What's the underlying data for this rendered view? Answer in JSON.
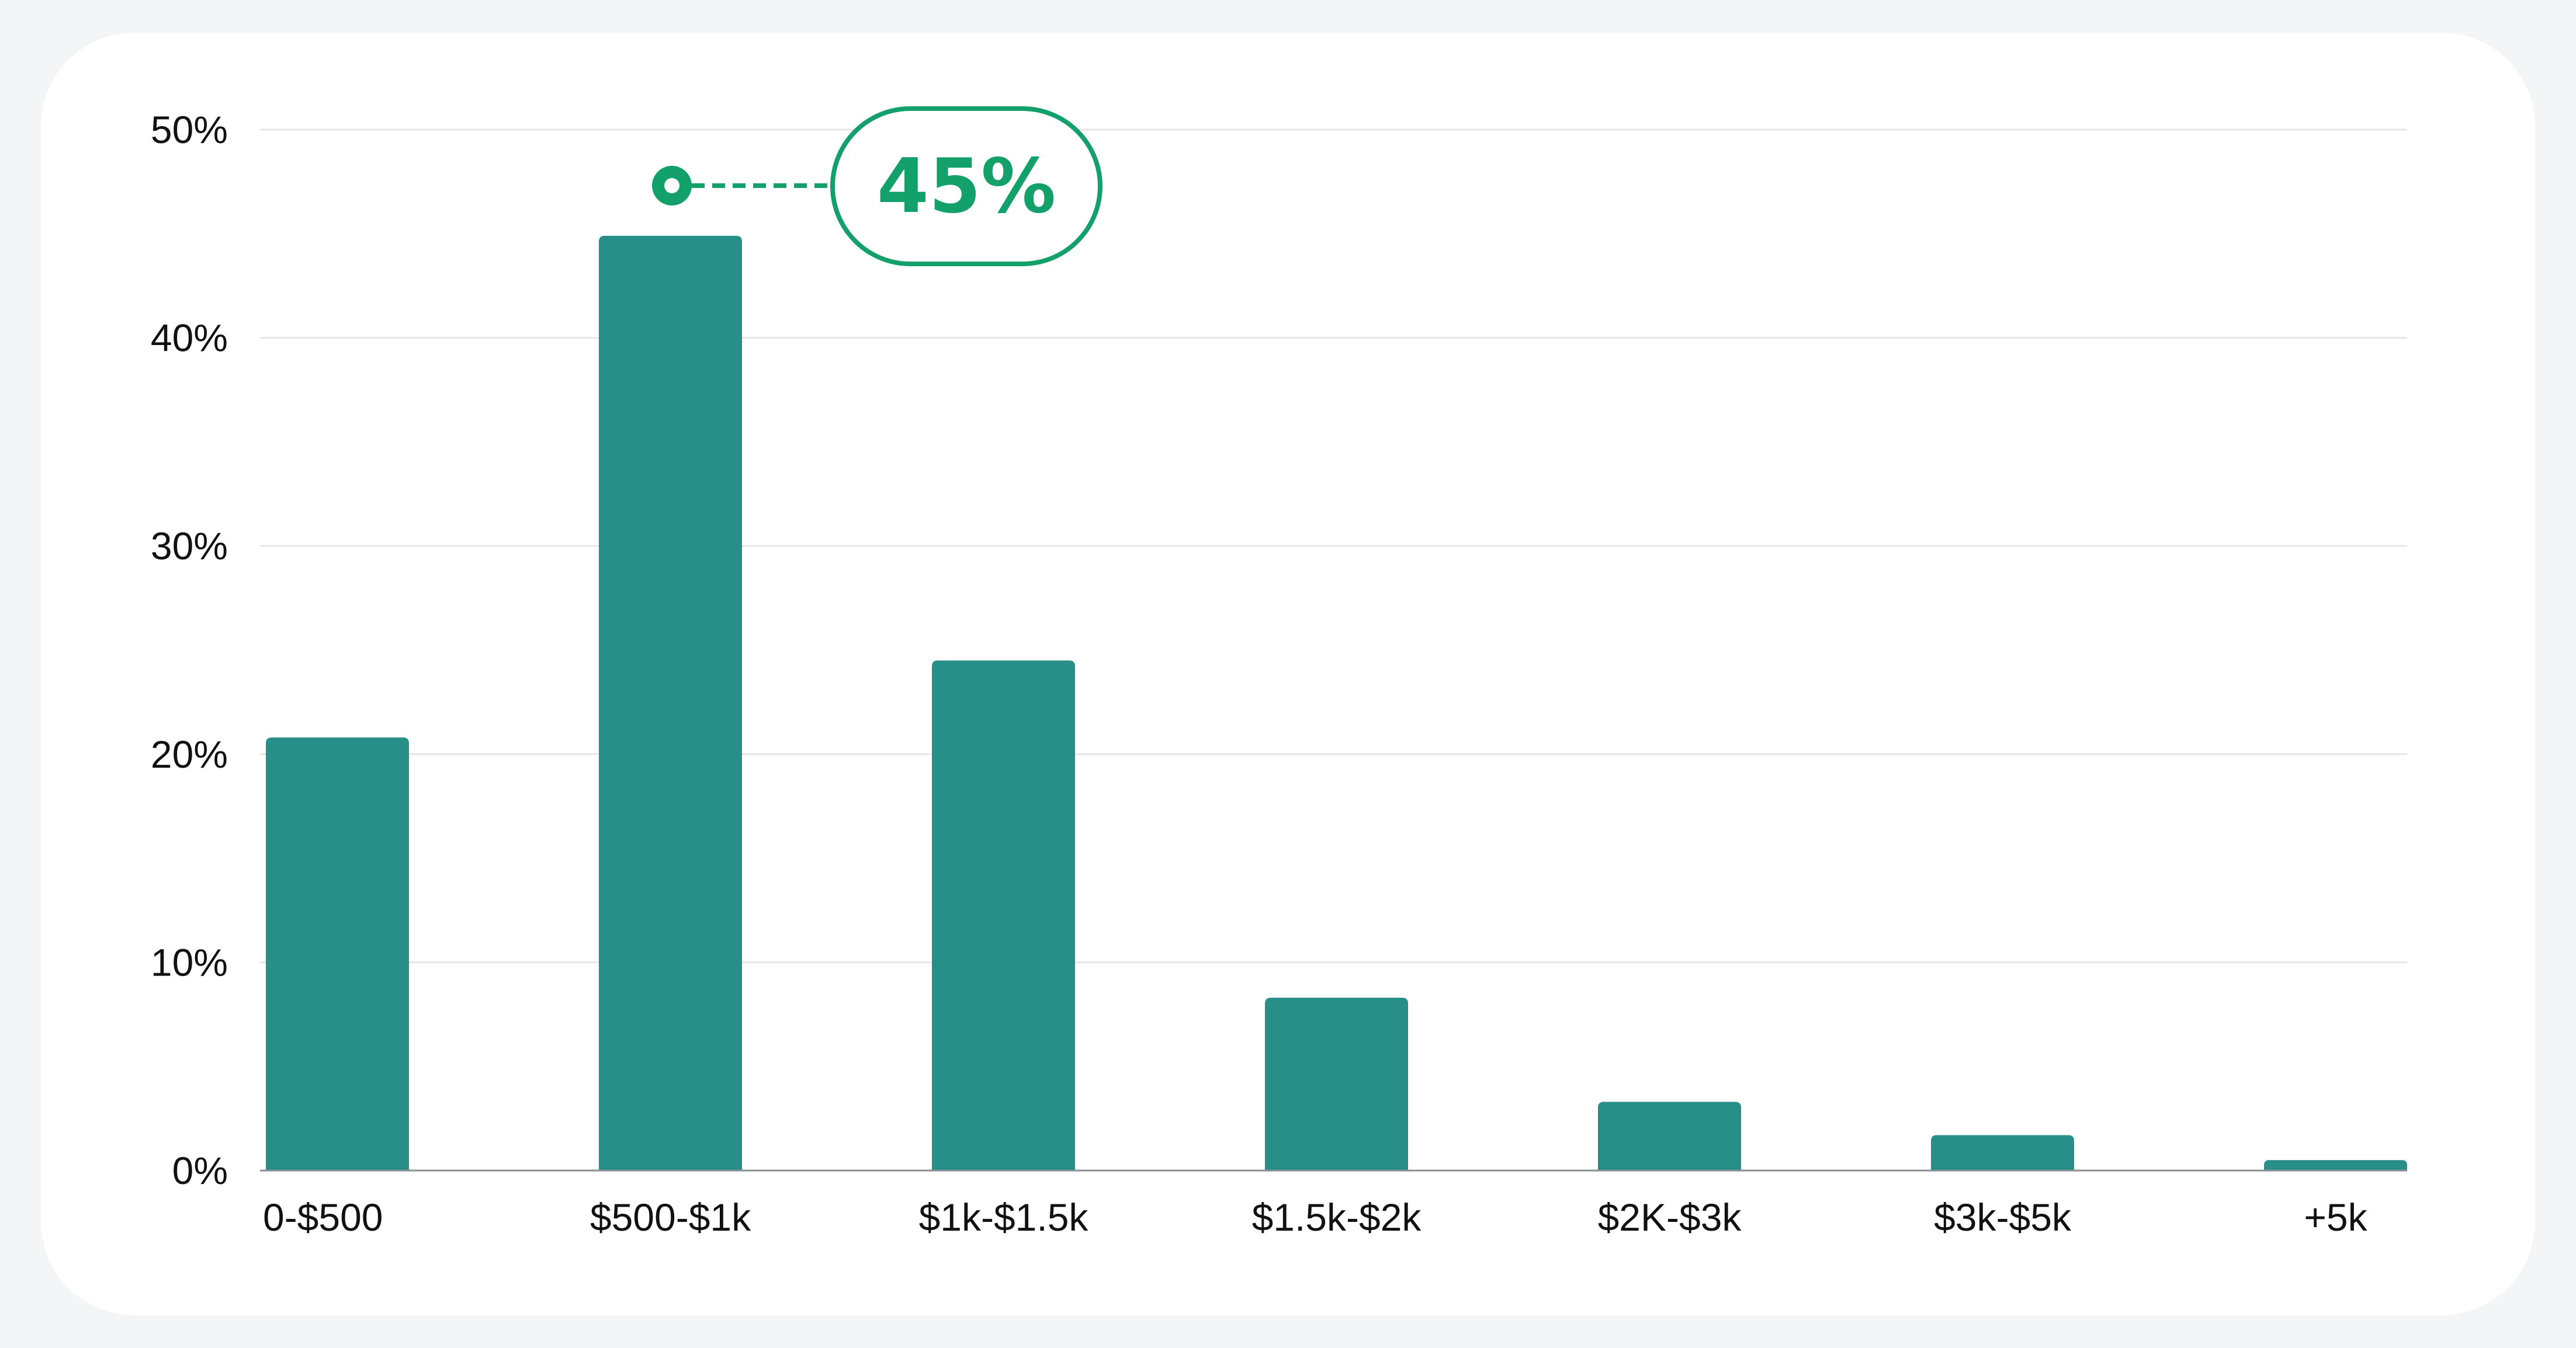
{
  "chart_data": {
    "type": "bar",
    "title": "",
    "xlabel": "",
    "ylabel": "",
    "categories": [
      "0-$500",
      "$500-$1k",
      "$1k-$1.5k",
      "$1.5k-$2k",
      "$2K-$3k",
      "$3k-$5k",
      "+5k"
    ],
    "values": [
      20.8,
      44.9,
      24.5,
      8.3,
      3.3,
      1.7,
      0.5
    ],
    "ylim": [
      0,
      50
    ],
    "yticks": [
      0,
      10,
      20,
      30,
      40,
      50
    ],
    "ytick_labels": [
      "0%",
      "10%",
      "20%",
      "30%",
      "40%",
      "50%"
    ],
    "grid": true,
    "legend": "none",
    "bar_color": "#278f87",
    "annotation": {
      "category": "$500-$1k",
      "label": "45%",
      "color": "#13a06a"
    }
  }
}
